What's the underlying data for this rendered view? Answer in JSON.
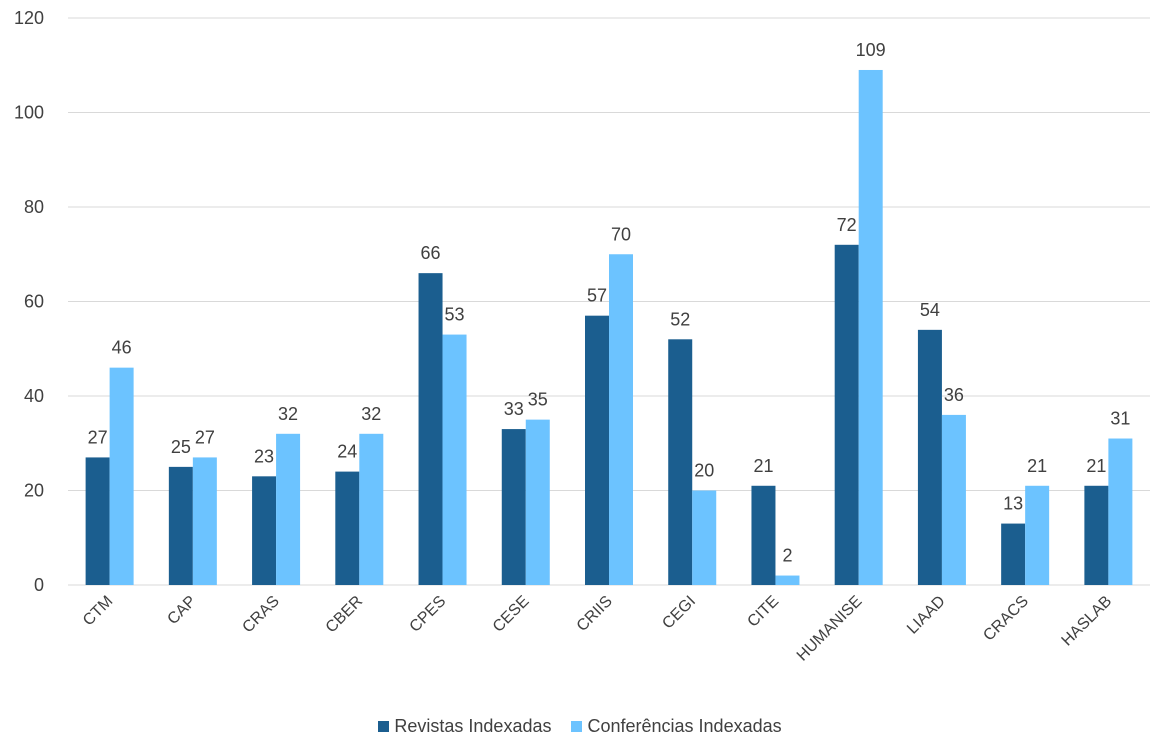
{
  "chart_data": {
    "type": "bar",
    "categories": [
      "CTM",
      "CAP",
      "CRAS",
      "CBER",
      "CPES",
      "CESE",
      "CRIIS",
      "CEGI",
      "CITE",
      "HUMANISE",
      "LIAAD",
      "CRACS",
      "HASLAB"
    ],
    "series": [
      {
        "name": "Revistas Indexadas",
        "color": "#1b5e8f",
        "values": [
          27,
          25,
          23,
          24,
          66,
          33,
          57,
          52,
          21,
          72,
          54,
          13,
          21
        ]
      },
      {
        "name": "Conferências Indexadas",
        "color": "#6cc3ff",
        "values": [
          46,
          27,
          32,
          32,
          53,
          35,
          70,
          20,
          2,
          109,
          36,
          21,
          31
        ]
      }
    ],
    "ylim": [
      0,
      120
    ],
    "yticks": [
      0,
      20,
      40,
      60,
      80,
      100,
      120
    ],
    "grid": true,
    "legend": "bottom",
    "data_labels": true
  }
}
